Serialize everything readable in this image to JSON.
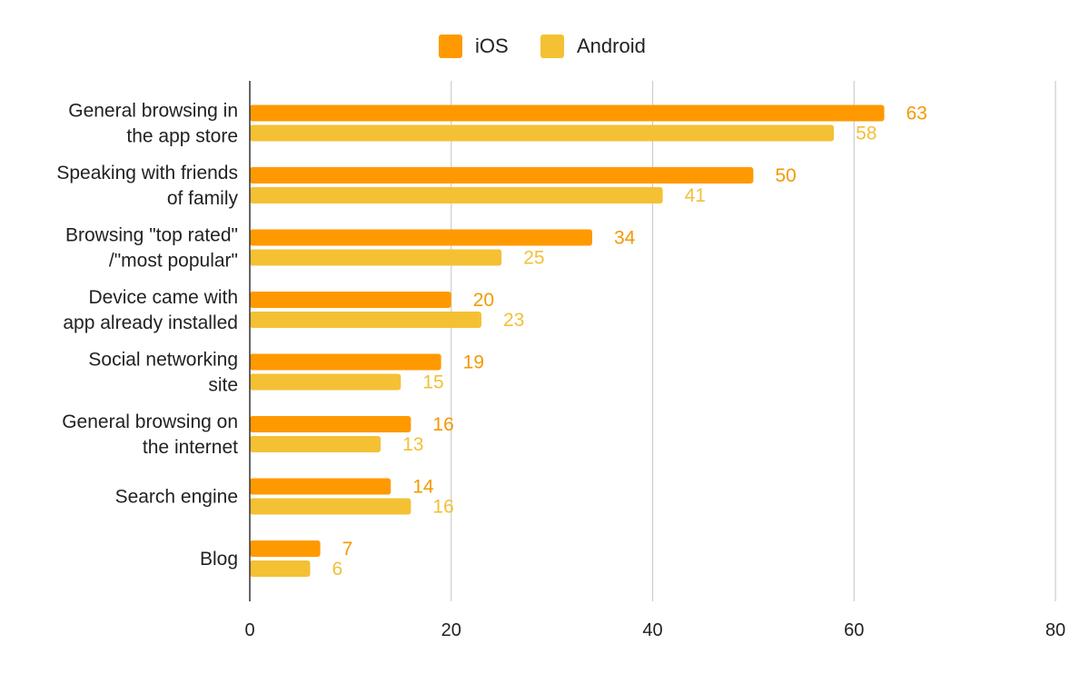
{
  "chart_data": {
    "type": "bar",
    "orientation": "horizontal",
    "categories": [
      [
        "General browsing in",
        "the app store"
      ],
      [
        "Speaking with friends",
        "of family"
      ],
      [
        "Browsing \"top rated\"",
        "/\"most popular\""
      ],
      [
        "Device came with",
        "app already installed"
      ],
      [
        "Social networking",
        "site"
      ],
      [
        "General browsing on",
        "the internet"
      ],
      [
        "Search engine"
      ],
      [
        "Blog"
      ]
    ],
    "series": [
      {
        "name": "iOS",
        "color": "#ff9900",
        "label_color": "#f29900",
        "values": [
          63,
          50,
          34,
          20,
          19,
          16,
          14,
          7
        ]
      },
      {
        "name": "Android",
        "color": "#f4c135",
        "label_color": "#f2c037",
        "values": [
          58,
          41,
          25,
          23,
          15,
          13,
          16,
          6
        ]
      }
    ],
    "xlim": [
      0,
      80
    ],
    "x_ticks": [
      "0",
      "20",
      "40",
      "60",
      "80"
    ],
    "grid": true,
    "legend_position": "top-center",
    "data_labels": true
  }
}
